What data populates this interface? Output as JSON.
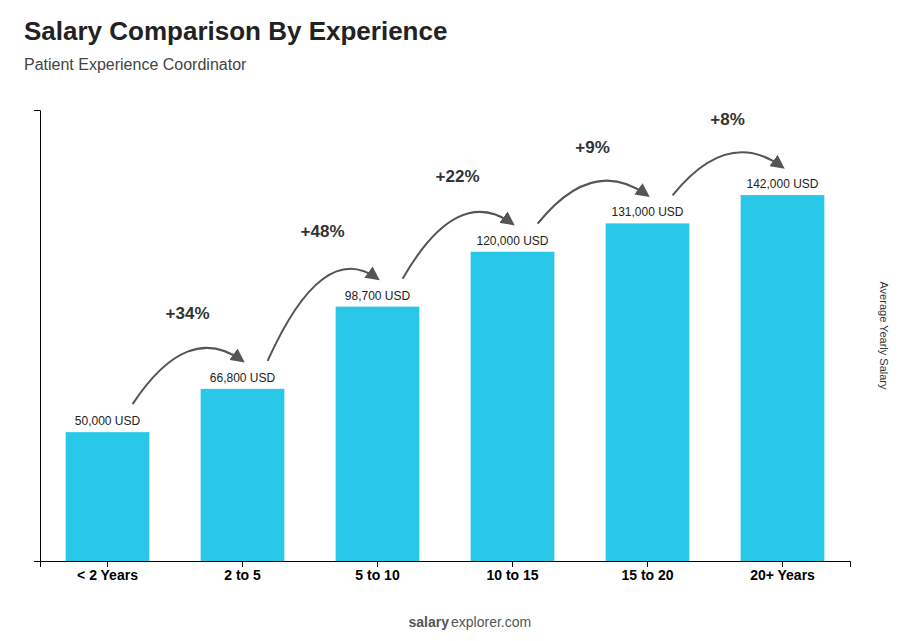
{
  "chart_data": {
    "type": "bar",
    "title": "Salary Comparison By Experience",
    "subtitle": "Patient Experience Coordinator",
    "ylabel": "Average Yearly Salary",
    "footer": [
      "salary",
      "explorer.com"
    ],
    "categories": [
      "< 2 Years",
      "2 to 5",
      "5 to 10",
      "10 to 15",
      "15 to 20",
      "20+ Years"
    ],
    "values": [
      50000,
      66800,
      98700,
      120000,
      131000,
      142000
    ],
    "value_labels": [
      "50,000 USD",
      "66,800 USD",
      "98,700 USD",
      "120,000 USD",
      "131,000 USD",
      "142,000 USD"
    ],
    "data_labels": true,
    "annotations": [
      "+34%",
      "+48%",
      "+22%",
      "+9%",
      "+8%"
    ],
    "color": "#29c8e8",
    "ylim": [
      0,
      175000
    ],
    "yticks": [],
    "tick_labels": "x",
    "grid": false
  }
}
